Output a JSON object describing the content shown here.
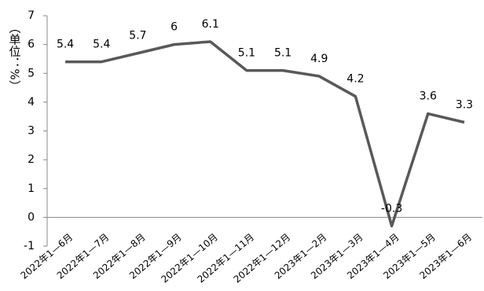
{
  "chart_data": {
    "type": "line",
    "y_label": "（单位：%）",
    "categories": [
      "2022年1—6月",
      "2022年1—7月",
      "2022年1—8月",
      "2022年1—9月",
      "2022年1—10月",
      "2022年1—11月",
      "2022年1—12月",
      "2023年1—2月",
      "2023年1—3月",
      "2023年1—4月",
      "2023年1—5月",
      "2023年1—6月"
    ],
    "series": [
      {
        "name": null,
        "color": "#595959",
        "values": [
          5.4,
          5.4,
          5.7,
          6,
          6.1,
          5.1,
          5.1,
          4.9,
          4.2,
          -0.3,
          3.6,
          3.3
        ]
      }
    ],
    "ylim": [
      -1,
      7
    ],
    "yticks": [
      -1,
      0,
      1,
      2,
      3,
      4,
      5,
      6,
      7
    ],
    "grid": false
  }
}
